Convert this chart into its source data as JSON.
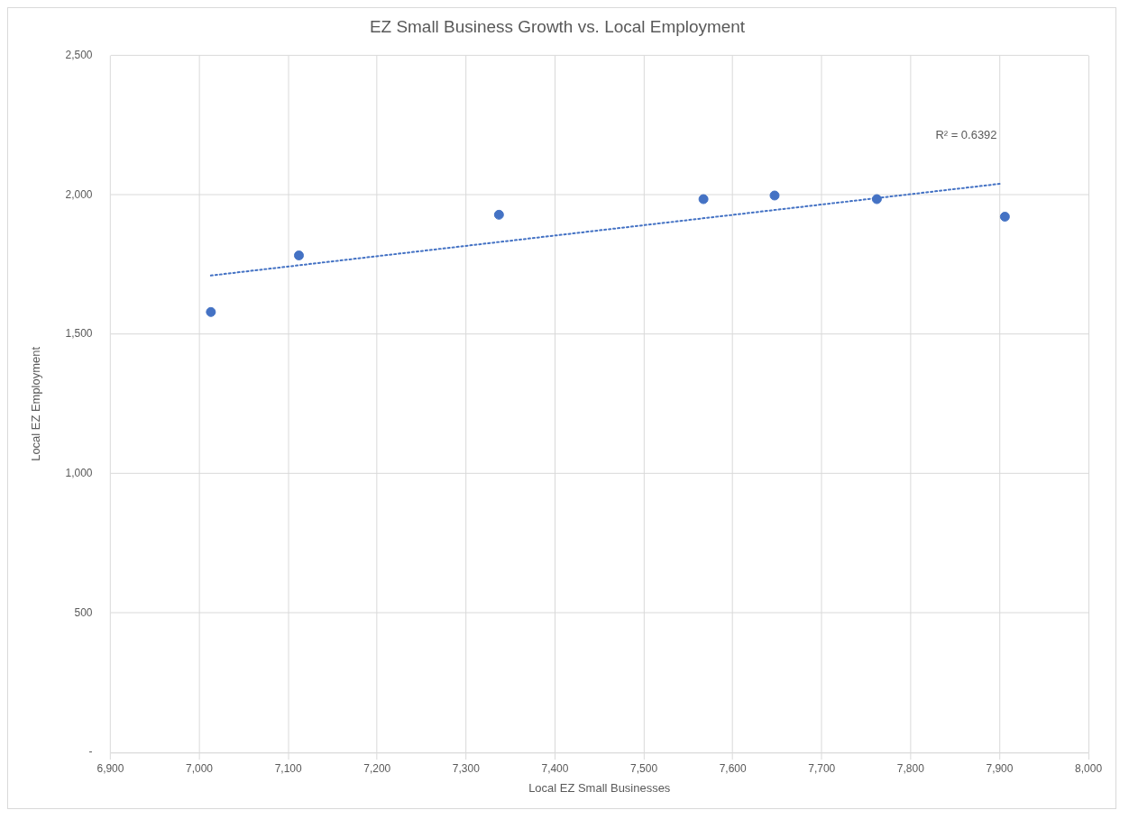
{
  "chart_data": {
    "type": "scatter",
    "title": "EZ Small Business Growth vs. Local Employment",
    "xlabel": "Local EZ Small Businesses",
    "ylabel": "Local EZ Employment",
    "series": [
      {
        "type": "scatter",
        "color": "#4472c4",
        "marker": "circle",
        "x": [
          7013,
          7112,
          7337,
          7567,
          7647,
          7762,
          7906
        ],
        "values": [
          1580,
          1783,
          1929,
          1985,
          1998,
          1985,
          1922
        ]
      },
      {
        "type": "line",
        "color": "#4472c4",
        "marker": "none",
        "line_style": "dotted",
        "x": [
          7013,
          7903
        ],
        "values": [
          1711,
          2041
        ]
      }
    ],
    "annotations": [
      "R² = 0.6392"
    ],
    "xlim": [
      6900,
      8000
    ],
    "xticks": [
      {
        "value": 6900,
        "label": "6,900"
      },
      {
        "value": 7000,
        "label": "7,000"
      },
      {
        "value": 7100,
        "label": "7,100"
      },
      {
        "value": 7200,
        "label": "7,200"
      },
      {
        "value": 7300,
        "label": "7,300"
      },
      {
        "value": 7400,
        "label": "7,400"
      },
      {
        "value": 7500,
        "label": "7,500"
      },
      {
        "value": 7600,
        "label": "7,600"
      },
      {
        "value": 7700,
        "label": "7,700"
      },
      {
        "value": 7800,
        "label": "7,800"
      },
      {
        "value": 7900,
        "label": "7,900"
      },
      {
        "value": 8000,
        "label": "8,000"
      }
    ],
    "ylim": [
      0,
      2500
    ],
    "yticks": [
      {
        "value": 0,
        "label": "-"
      },
      500,
      {
        "value": 1000,
        "label": "1,000"
      },
      {
        "value": 1500,
        "label": "1,500"
      },
      {
        "value": 2000,
        "label": "2,000"
      },
      {
        "value": 2500,
        "label": "2,500"
      }
    ],
    "grid": true,
    "legend": false
  }
}
